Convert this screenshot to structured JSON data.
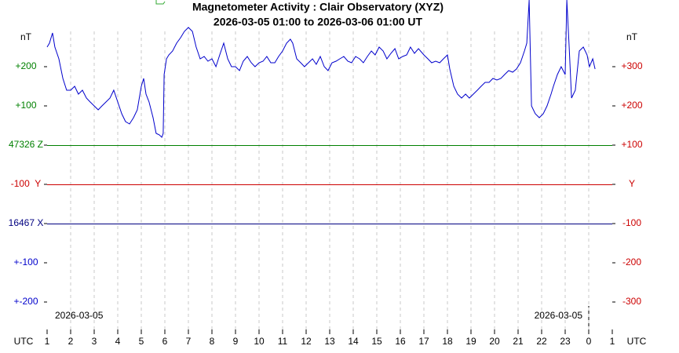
{
  "chart_data": {
    "type": "line",
    "title": "Magnetometer Activity : Clair Observatory (XYZ)",
    "subtitle": "2026-03-05 01:00 to 2026-03-06 01:00 UT",
    "x_unit": "UTC",
    "start_date": "2026-03-05",
    "end_date": "2026-03-05",
    "left_labels": [
      {
        "label": "nT",
        "color": "#000000"
      },
      {
        "label": "+200",
        "color": "#008000"
      },
      {
        "label": "+100",
        "color": "#008000"
      },
      {
        "label": "47326 Z",
        "color": "#008000"
      },
      {
        "label": "-100  Y",
        "color": "#cc0000"
      },
      {
        "label": "16467 X",
        "color": "#000080"
      },
      {
        "label": "+-100",
        "color": "#0000cc"
      },
      {
        "label": "+-200",
        "color": "#0000cc"
      }
    ],
    "right_labels": [
      {
        "label": "nT",
        "color": "#000000"
      },
      {
        "label": "+300",
        "color": "#cc0000"
      },
      {
        "label": "+200",
        "color": "#cc0000"
      },
      {
        "label": "+100",
        "color": "#cc0000"
      },
      {
        "label": "Y",
        "color": "#cc0000"
      },
      {
        "label": "-100",
        "color": "#cc0000"
      },
      {
        "label": "-200",
        "color": "#cc0000"
      },
      {
        "label": "-300",
        "color": "#cc0000"
      }
    ],
    "reference_lines": [
      {
        "color": "#008000"
      },
      {
        "color": "#cc0000"
      },
      {
        "color": "#000080"
      }
    ],
    "xlim": [
      0,
      24
    ],
    "ylim": [
      -330,
      570
    ],
    "xticks": [
      {
        "value": 0,
        "label": "1"
      },
      {
        "value": 1,
        "label": "2"
      },
      {
        "value": 2,
        "label": "3"
      },
      {
        "value": 3,
        "label": "4"
      },
      {
        "value": 4,
        "label": "5"
      },
      {
        "value": 5,
        "label": "6"
      },
      {
        "value": 6,
        "label": "7"
      },
      {
        "value": 7,
        "label": "8"
      },
      {
        "value": 8,
        "label": "9"
      },
      {
        "value": 9,
        "label": "10"
      },
      {
        "value": 10,
        "label": "11"
      },
      {
        "value": 11,
        "label": "12"
      },
      {
        "value": 12,
        "label": "13"
      },
      {
        "value": 13,
        "label": "14"
      },
      {
        "value": 14,
        "label": "15"
      },
      {
        "value": 15,
        "label": "16"
      },
      {
        "value": 16,
        "label": "17"
      },
      {
        "value": 17,
        "label": "18"
      },
      {
        "value": 18,
        "label": "19"
      },
      {
        "value": 19,
        "label": "20"
      },
      {
        "value": 20,
        "label": "21"
      },
      {
        "value": 21,
        "label": "22"
      },
      {
        "value": 22,
        "label": "23"
      },
      {
        "value": 23,
        "label": "0"
      },
      {
        "value": 24,
        "label": "1"
      }
    ],
    "x": [
      0,
      0.1,
      0.23,
      0.33,
      0.5,
      0.67,
      0.83,
      1,
      1.17,
      1.33,
      1.5,
      1.67,
      1.83,
      2,
      2.17,
      2.33,
      2.5,
      2.67,
      2.83,
      3,
      3.17,
      3.33,
      3.5,
      3.67,
      3.83,
      4,
      4.1,
      4.2,
      4.33,
      4.5,
      4.63,
      4.77,
      4.87,
      4.93,
      4.97,
      5.07,
      5.17,
      5.33,
      5.5,
      5.67,
      5.83,
      6,
      6.17,
      6.33,
      6.5,
      6.67,
      6.83,
      7,
      7.17,
      7.33,
      7.5,
      7.67,
      7.83,
      8,
      8.17,
      8.33,
      8.5,
      8.67,
      8.83,
      9,
      9.17,
      9.33,
      9.5,
      9.67,
      9.83,
      10,
      10.17,
      10.33,
      10.43,
      10.6,
      10.77,
      10.93,
      11.1,
      11.27,
      11.43,
      11.6,
      11.77,
      11.93,
      12.1,
      12.27,
      12.43,
      12.6,
      12.77,
      12.93,
      13.1,
      13.27,
      13.43,
      13.6,
      13.77,
      13.93,
      14.1,
      14.27,
      14.43,
      14.6,
      14.77,
      14.93,
      15.1,
      15.27,
      15.43,
      15.6,
      15.77,
      16,
      16.17,
      16.33,
      16.5,
      16.67,
      16.83,
      17,
      17.1,
      17.27,
      17.43,
      17.6,
      17.77,
      17.93,
      18.1,
      18.27,
      18.43,
      18.6,
      18.77,
      18.93,
      19.1,
      19.27,
      19.43,
      19.6,
      19.77,
      19.93,
      20.1,
      20.27,
      20.37,
      20.47,
      20.57,
      20.73,
      20.9,
      21.07,
      21.23,
      21.4,
      21.5,
      21.67,
      21.83,
      22,
      22.07,
      22.17,
      22.27,
      22.43,
      22.6,
      22.77,
      22.93,
      23.03,
      23.17,
      23.27
    ],
    "series": [
      {
        "color": "#0000cc",
        "values": [
          450,
          460,
          486,
          450,
          420,
          370,
          340,
          340,
          350,
          330,
          340,
          320,
          310,
          300,
          290,
          300,
          310,
          320,
          340,
          310,
          280,
          260,
          254,
          270,
          290,
          350,
          370,
          330,
          310,
          270,
          230,
          226,
          220,
          230,
          380,
          420,
          430,
          440,
          460,
          474,
          490,
          500,
          490,
          450,
          420,
          426,
          414,
          420,
          400,
          430,
          460,
          420,
          400,
          400,
          390,
          414,
          426,
          410,
          400,
          410,
          414,
          426,
          410,
          410,
          426,
          440,
          460,
          470,
          460,
          420,
          410,
          400,
          410,
          420,
          406,
          426,
          400,
          390,
          410,
          414,
          420,
          426,
          414,
          410,
          426,
          420,
          410,
          426,
          440,
          430,
          450,
          440,
          420,
          434,
          446,
          420,
          426,
          430,
          450,
          434,
          446,
          430,
          420,
          410,
          414,
          410,
          420,
          430,
          394,
          350,
          330,
          320,
          330,
          320,
          330,
          340,
          350,
          360,
          360,
          370,
          366,
          370,
          380,
          390,
          386,
          394,
          410,
          440,
          460,
          570,
          300,
          280,
          270,
          280,
          300,
          330,
          350,
          380,
          400,
          380,
          570,
          450,
          320,
          340,
          440,
          450,
          430,
          400,
          420,
          394
        ]
      }
    ]
  }
}
